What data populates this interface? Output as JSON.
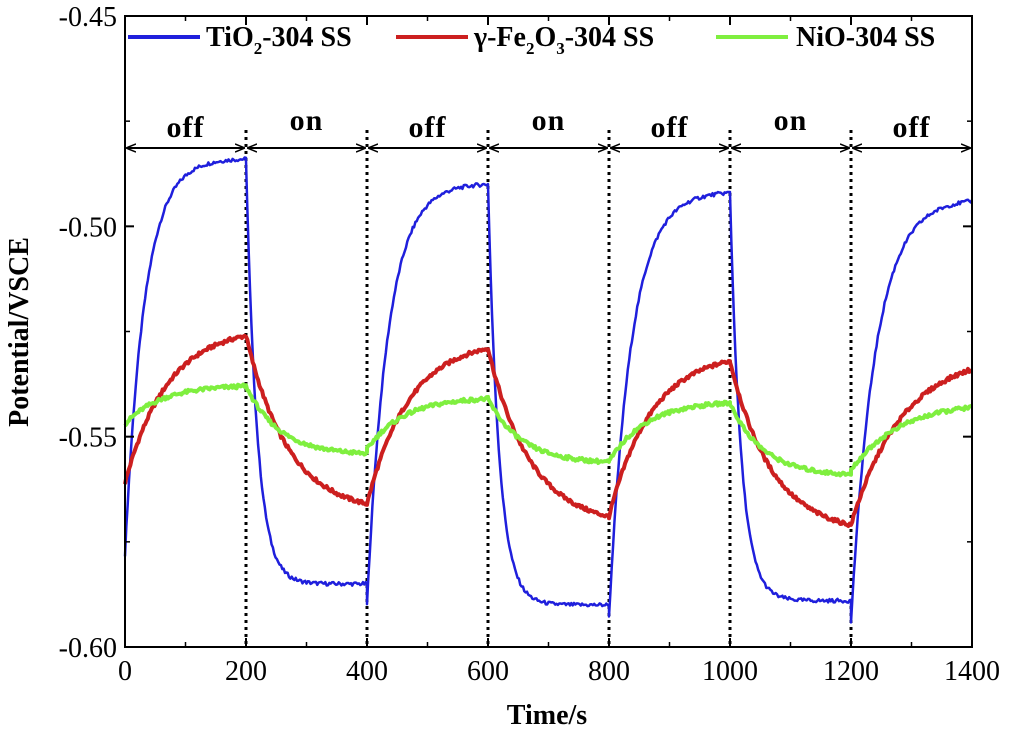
{
  "chart_data": {
    "type": "line",
    "title": "",
    "xlabel": "Time/s",
    "ylabel": "Potential/VSCE",
    "xlim": [
      0,
      1400
    ],
    "ylim": [
      -0.6,
      -0.45
    ],
    "xticks": [
      "0",
      "200",
      "400",
      "600",
      "800",
      "1000",
      "1200",
      "1400"
    ],
    "yticks": [
      "-0.45",
      "-0.50",
      "-0.55",
      "-0.60"
    ],
    "grid": false,
    "legend_position": "top",
    "phases": [
      {
        "label": "off",
        "start": 0,
        "end": 200
      },
      {
        "label": "on",
        "start": 200,
        "end": 400
      },
      {
        "label": "off",
        "start": 400,
        "end": 600
      },
      {
        "label": "on",
        "start": 600,
        "end": 800
      },
      {
        "label": "off",
        "start": 800,
        "end": 1000
      },
      {
        "label": "on",
        "start": 1000,
        "end": 1200
      },
      {
        "label": "off",
        "start": 1200,
        "end": 1400
      }
    ],
    "switch_times": [
      200,
      400,
      600,
      800,
      1000,
      1200
    ],
    "series": [
      {
        "name": "TiO2-304 SS",
        "legend_main": "TiO",
        "legend_sub": "2",
        "legend_tail": "-304 SS",
        "color": "#1f1fdc",
        "cycles": [
          {
            "mode": "off",
            "start": 0,
            "end": 200,
            "from": -0.578,
            "to": -0.484,
            "tau": 32
          },
          {
            "mode": "on",
            "start": 200,
            "end": 400,
            "from": -0.484,
            "to": -0.585,
            "tau": 18
          },
          {
            "mode": "off",
            "start": 400,
            "end": 600,
            "from": -0.59,
            "to": -0.49,
            "tau": 34
          },
          {
            "mode": "on",
            "start": 600,
            "end": 800,
            "from": -0.49,
            "to": -0.59,
            "tau": 18
          },
          {
            "mode": "off",
            "start": 800,
            "end": 1000,
            "from": -0.593,
            "to": -0.492,
            "tau": 36
          },
          {
            "mode": "on",
            "start": 1000,
            "end": 1200,
            "from": -0.492,
            "to": -0.589,
            "tau": 18
          },
          {
            "mode": "off",
            "start": 1200,
            "end": 1400,
            "from": -0.594,
            "to": -0.494,
            "tau": 40
          }
        ]
      },
      {
        "name": "γ-Fe2O3-304 SS",
        "legend_main": "γ-Fe",
        "legend_sub": "2",
        "legend_mid": "O",
        "legend_sub2": "3",
        "legend_tail": "-304 SS",
        "color": "#cc1f1f",
        "cycles": [
          {
            "mode": "off",
            "start": 0,
            "end": 200,
            "from": -0.561,
            "to": -0.526,
            "tau": 70
          },
          {
            "mode": "on",
            "start": 200,
            "end": 400,
            "from": -0.526,
            "to": -0.566,
            "tau": 70
          },
          {
            "mode": "off",
            "start": 400,
            "end": 600,
            "from": -0.566,
            "to": -0.529,
            "tau": 70
          },
          {
            "mode": "on",
            "start": 600,
            "end": 800,
            "from": -0.529,
            "to": -0.569,
            "tau": 70
          },
          {
            "mode": "off",
            "start": 800,
            "end": 1000,
            "from": -0.569,
            "to": -0.532,
            "tau": 70
          },
          {
            "mode": "on",
            "start": 1000,
            "end": 1200,
            "from": -0.532,
            "to": -0.571,
            "tau": 70
          },
          {
            "mode": "off",
            "start": 1200,
            "end": 1400,
            "from": -0.571,
            "to": -0.534,
            "tau": 85
          }
        ]
      },
      {
        "name": "NiO-304 SS",
        "legend_main": "NiO-304 SS",
        "color": "#7fef3f",
        "cycles": [
          {
            "mode": "off",
            "start": 0,
            "end": 200,
            "from": -0.547,
            "to": -0.538,
            "tau": 60
          },
          {
            "mode": "on",
            "start": 200,
            "end": 400,
            "from": -0.538,
            "to": -0.554,
            "tau": 55
          },
          {
            "mode": "off",
            "start": 400,
            "end": 600,
            "from": -0.553,
            "to": -0.541,
            "tau": 60
          },
          {
            "mode": "on",
            "start": 600,
            "end": 800,
            "from": -0.541,
            "to": -0.556,
            "tau": 55
          },
          {
            "mode": "off",
            "start": 800,
            "end": 1000,
            "from": -0.556,
            "to": -0.542,
            "tau": 60
          },
          {
            "mode": "on",
            "start": 1000,
            "end": 1200,
            "from": -0.542,
            "to": -0.559,
            "tau": 55
          },
          {
            "mode": "off",
            "start": 1200,
            "end": 1400,
            "from": -0.558,
            "to": -0.543,
            "tau": 80
          }
        ]
      }
    ]
  }
}
